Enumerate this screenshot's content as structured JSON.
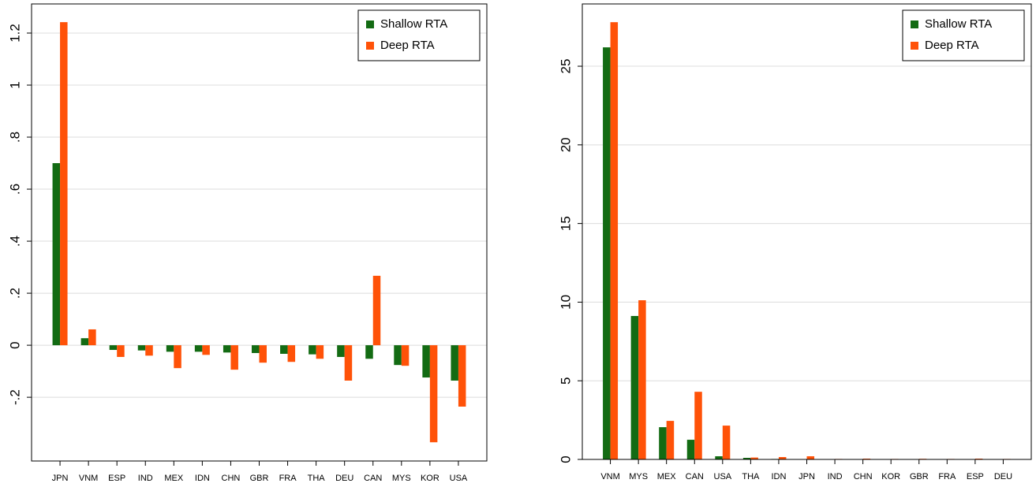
{
  "chart_data": [
    {
      "type": "bar",
      "categories": [
        "JPN",
        "VNM",
        "ESP",
        "IND",
        "MEX",
        "IDN",
        "CHN",
        "GBR",
        "FRA",
        "THA",
        "DEU",
        "CAN",
        "MYS",
        "KOR",
        "USA"
      ],
      "series": [
        {
          "name": "Shallow RTA",
          "color": "#136b13",
          "values": [
            0.7,
            0.027,
            -0.018,
            -0.02,
            -0.025,
            -0.025,
            -0.028,
            -0.03,
            -0.033,
            -0.035,
            -0.045,
            -0.052,
            -0.076,
            -0.124,
            -0.136
          ]
        },
        {
          "name": "Deep RTA",
          "color": "#ff5208",
          "values": [
            1.242,
            0.061,
            -0.045,
            -0.04,
            -0.088,
            -0.037,
            -0.094,
            -0.067,
            -0.064,
            -0.052,
            -0.136,
            0.267,
            -0.079,
            -0.373,
            -0.236
          ]
        }
      ],
      "ylim": [
        -0.445,
        1.312
      ],
      "yticks": [
        {
          "value": -0.2,
          "label": "-.2"
        },
        0,
        {
          "value": 0.2,
          "label": ".2"
        },
        {
          "value": 0.4,
          "label": ".4"
        },
        {
          "value": 0.6,
          "label": ".6"
        },
        {
          "value": 0.8,
          "label": ".8"
        },
        1,
        1.2
      ],
      "grid": true,
      "legend": "top-right"
    },
    {
      "type": "bar",
      "categories": [
        "VNM",
        "MYS",
        "MEX",
        "CAN",
        "USA",
        "THA",
        "IDN",
        "JPN",
        "IND",
        "CHN",
        "KOR",
        "GBR",
        "FRA",
        "ESP",
        "DEU"
      ],
      "series": [
        {
          "name": "Shallow RTA",
          "color": "#136b13",
          "values": [
            26.2,
            9.12,
            2.05,
            1.25,
            0.2,
            0.1,
            0.03,
            0.02,
            0.02,
            0.02,
            0.01,
            0.01,
            0.01,
            0.01,
            0.01
          ]
        },
        {
          "name": "Deep RTA",
          "color": "#ff5208",
          "values": [
            27.8,
            10.12,
            2.45,
            4.3,
            2.15,
            0.12,
            0.15,
            0.2,
            0.03,
            0.05,
            0.03,
            0.04,
            0.03,
            0.05,
            0.03
          ]
        }
      ],
      "ylim": [
        0,
        28.96
      ],
      "yticks": [
        0,
        5,
        10,
        15,
        20,
        25
      ],
      "grid": true,
      "legend": "top-right"
    }
  ]
}
